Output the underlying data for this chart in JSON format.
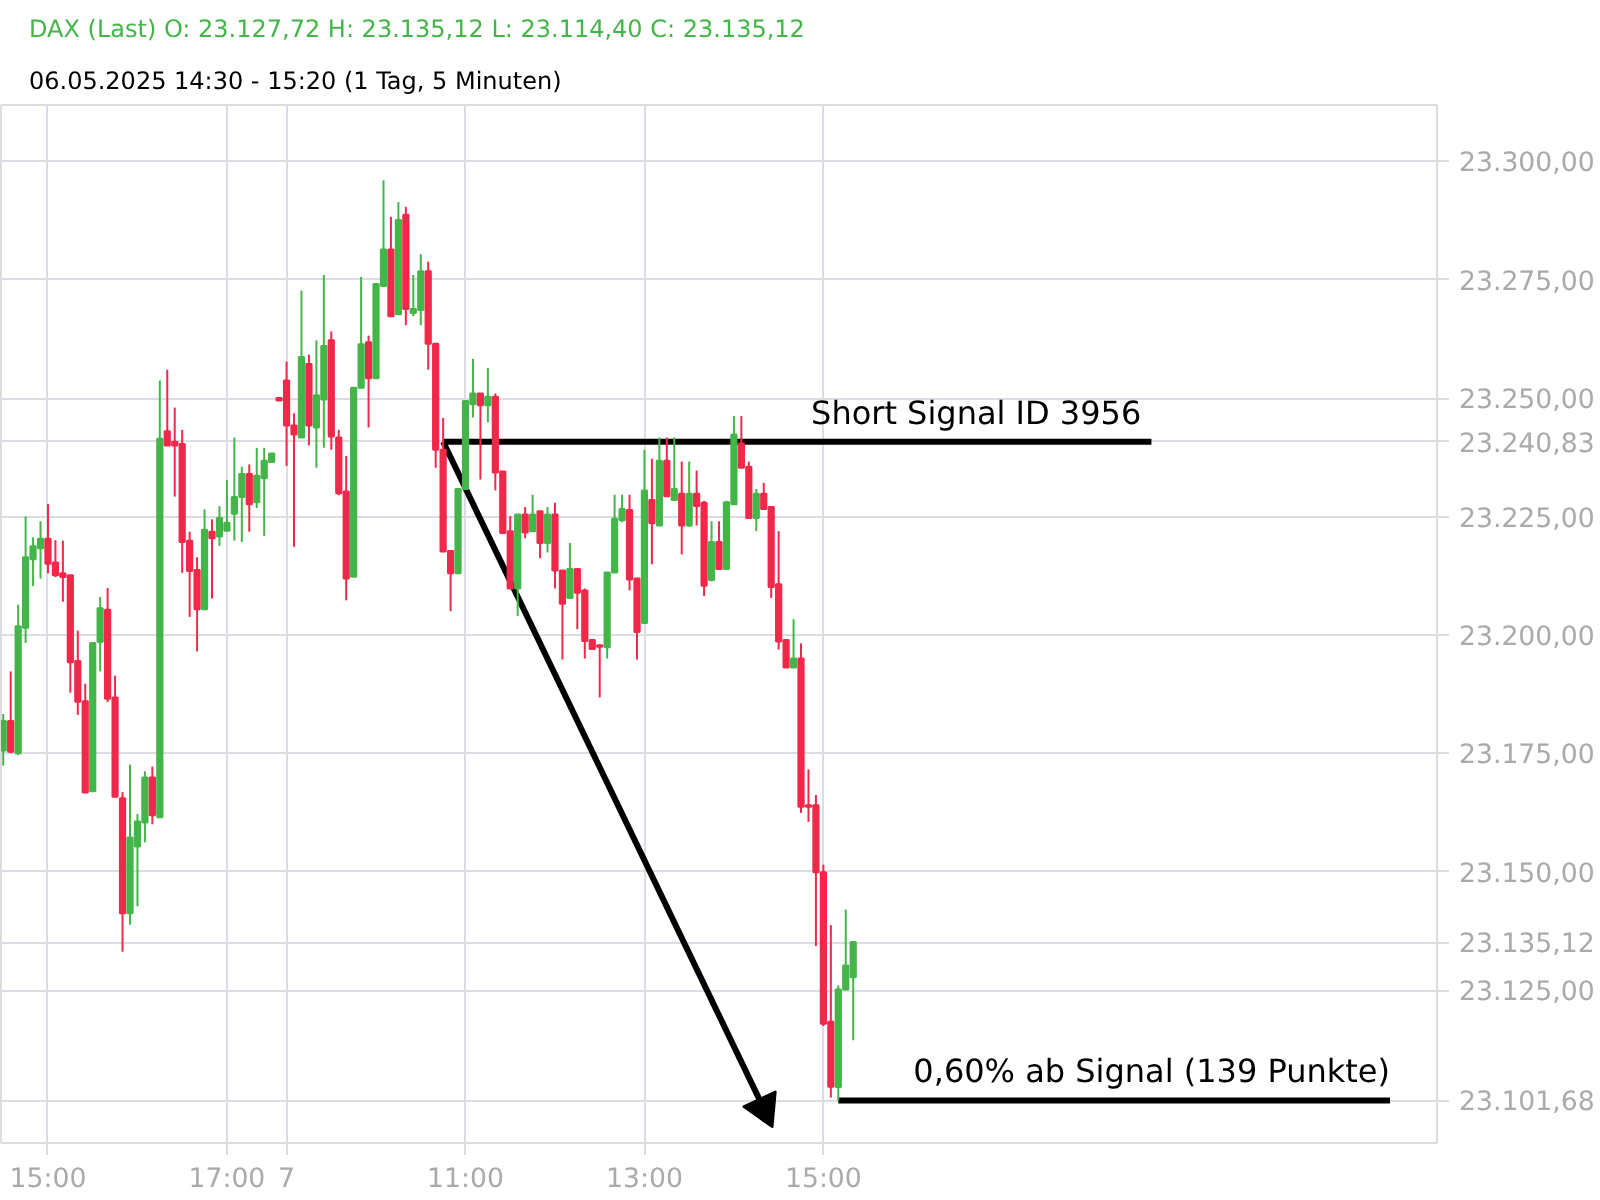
{
  "chart_data": {
    "type": "candlestick",
    "title": "DAX (Last)  O: 23.127,72  H: 23.135,12  L: 23.114,40  C: 23.135,12",
    "subtitle": "06.05.2025 14:30 - 15:20  (1 Tag, 5 Minuten)",
    "categories": [
      null,
      null,
      null,
      null,
      null,
      null,
      "15:00",
      null,
      null,
      null,
      null,
      null,
      null,
      null,
      null,
      null,
      null,
      null,
      null,
      null,
      null,
      null,
      null,
      null,
      null,
      null,
      null,
      null,
      null,
      null,
      "17:00",
      null,
      null,
      null,
      null,
      null,
      null,
      null,
      "7",
      null,
      null,
      null,
      null,
      null,
      null,
      null,
      null,
      null,
      null,
      null,
      null,
      null,
      null,
      null,
      null,
      null,
      null,
      null,
      null,
      null,
      null,
      null,
      "11:00",
      null,
      null,
      null,
      null,
      null,
      null,
      null,
      null,
      null,
      null,
      null,
      null,
      null,
      null,
      null,
      null,
      null,
      null,
      null,
      null,
      null,
      null,
      null,
      "13:00",
      null,
      null,
      null,
      null,
      null,
      null,
      null,
      null,
      null,
      null,
      null,
      null,
      null,
      null,
      null,
      null,
      null,
      null,
      null,
      null,
      null,
      null,
      null,
      "15:00",
      null,
      null,
      null,
      null,
      null,
      null,
      null,
      null,
      null,
      null,
      null,
      null,
      null,
      null,
      null,
      null,
      null,
      null,
      null,
      null,
      null,
      null,
      null,
      null,
      null,
      null,
      null,
      null,
      null,
      null,
      null,
      null,
      null,
      null,
      null,
      null,
      null,
      null,
      null,
      null,
      null,
      null,
      null,
      null,
      null,
      null,
      null,
      null,
      null,
      null,
      null,
      null,
      null,
      null,
      null,
      null,
      null,
      null,
      null,
      null,
      null,
      null,
      null,
      null,
      null,
      null,
      null,
      null,
      null,
      null,
      null,
      null,
      null,
      null,
      null,
      null,
      null,
      null,
      null,
      null,
      null,
      null
    ],
    "ohlc": [
      [
        23175.6,
        23183.3,
        23172.4,
        23181.8
      ],
      [
        23181.8,
        23192.3,
        23175.0,
        23175.3
      ],
      [
        23175.0,
        23206.4,
        23174.6,
        23201.8
      ],
      [
        23201.5,
        23225.0,
        23198.3,
        23216.4
      ],
      [
        23216.0,
        23220.6,
        23210.3,
        23218.7
      ],
      [
        23218.3,
        23224.0,
        23211.9,
        23220.3
      ],
      [
        23220.3,
        23227.6,
        23213.0,
        23215.0
      ],
      [
        23215.3,
        23220.0,
        23212.2,
        23212.6
      ],
      [
        23213.0,
        23219.9,
        23207.0,
        23212.2
      ],
      [
        23212.6,
        23212.6,
        23187.8,
        23194.2
      ],
      [
        23194.5,
        23200.9,
        23183.1,
        23185.9
      ],
      [
        23186.0,
        23189.7,
        23166.7,
        23166.7
      ],
      [
        23167.0,
        23198.3,
        23167.0,
        23198.3
      ],
      [
        23198.5,
        23208.0,
        23192.3,
        23205.6
      ],
      [
        23205.3,
        23209.9,
        23185.8,
        23186.5
      ],
      [
        23186.8,
        23191.4,
        23165.8,
        23165.8
      ],
      [
        23165.5,
        23166.8,
        23133.1,
        23141.2
      ],
      [
        23141.2,
        23172.6,
        23138.8,
        23157.2
      ],
      [
        23155.3,
        23162.2,
        23142.7,
        23160.6
      ],
      [
        23160.4,
        23171.2,
        23156.2,
        23169.9
      ],
      [
        23169.9,
        23172.2,
        23160.0,
        23161.9
      ],
      [
        23161.5,
        23253.7,
        23161.5,
        23241.4
      ],
      [
        23243.0,
        23256.0,
        23240.0,
        23240.0
      ],
      [
        23240.8,
        23248.0,
        23229.2,
        23240.0
      ],
      [
        23240.3,
        23243.3,
        23213.1,
        23219.6
      ],
      [
        23219.9,
        23221.8,
        23203.8,
        23213.5
      ],
      [
        23213.7,
        23216.4,
        23196.5,
        23205.4
      ],
      [
        23205.4,
        23226.5,
        23205.4,
        23222.2
      ],
      [
        23221.8,
        23224.4,
        23207.7,
        23220.4
      ],
      [
        23220.8,
        23227.2,
        23218.8,
        23224.7
      ],
      [
        23222.0,
        23232.7,
        23222.0,
        23223.7
      ],
      [
        23225.6,
        23241.7,
        23219.9,
        23229.1
      ],
      [
        23229.1,
        23235.5,
        23219.6,
        23234.0
      ],
      [
        23234.0,
        23236.0,
        23221.8,
        23227.6
      ],
      [
        23228.0,
        23239.5,
        23226.8,
        23233.6
      ],
      [
        23233.1,
        23239.5,
        23220.9,
        23236.8
      ],
      [
        23236.5,
        23238.3,
        23236.5,
        23238.3
      ],
      [
        23250.0,
        23250.0,
        23249.5,
        23249.5
      ],
      [
        23253.7,
        23257.7,
        23235.7,
        23244.2
      ],
      [
        23244.2,
        23246.8,
        23218.6,
        23242.3
      ],
      [
        23241.7,
        23272.7,
        23241.7,
        23258.7
      ],
      [
        23257.2,
        23259.2,
        23240.0,
        23244.2
      ],
      [
        23243.8,
        23262.2,
        23235.3,
        23250.6
      ],
      [
        23249.7,
        23276.0,
        23239.5,
        23261.0
      ],
      [
        23262.2,
        23264.1,
        23239.1,
        23241.9
      ],
      [
        23241.7,
        23243.3,
        23229.5,
        23229.9
      ],
      [
        23230.3,
        23237.8,
        23207.3,
        23211.9
      ],
      [
        23212.3,
        23252.2,
        23212.3,
        23252.2
      ],
      [
        23252.2,
        23275.6,
        23252.2,
        23261.4
      ],
      [
        23261.8,
        23263.2,
        23243.8,
        23254.2
      ],
      [
        23254.2,
        23274.1,
        23254.2,
        23274.1
      ],
      [
        23273.7,
        23296.0,
        23273.7,
        23281.4
      ],
      [
        23281.4,
        23288.3,
        23267.3,
        23267.3
      ],
      [
        23267.7,
        23291.4,
        23267.7,
        23287.6
      ],
      [
        23288.7,
        23290.4,
        23265.4,
        23268.8
      ],
      [
        23268.0,
        23276.0,
        23267.3,
        23268.8
      ],
      [
        23268.6,
        23280.4,
        23265.4,
        23276.8
      ],
      [
        23276.8,
        23278.8,
        23256.0,
        23261.5
      ],
      [
        23261.5,
        23261.5,
        23235.3,
        23239.1
      ],
      [
        23239.1,
        23245.8,
        23217.6,
        23217.6
      ],
      [
        23217.7,
        23217.7,
        23205.0,
        23213.0
      ],
      [
        23213.0,
        23230.8,
        23213.0,
        23230.8
      ],
      [
        23230.8,
        23249.4,
        23230.8,
        23249.4
      ],
      [
        23248.7,
        23258.3,
        23245.9,
        23251.0
      ],
      [
        23251.0,
        23251.0,
        23232.8,
        23248.5
      ],
      [
        23248.5,
        23256.4,
        23244.9,
        23250.3
      ],
      [
        23250.3,
        23251.0,
        23230.5,
        23234.3
      ],
      [
        23234.5,
        23234.5,
        23221.3,
        23221.5
      ],
      [
        23221.9,
        23225.1,
        23209.8,
        23209.8
      ],
      [
        23209.8,
        23225.4,
        23204.0,
        23225.4
      ],
      [
        23225.4,
        23227.0,
        23220.4,
        23221.6
      ],
      [
        23221.9,
        23229.6,
        23221.9,
        23225.4
      ],
      [
        23226.1,
        23226.1,
        23216.2,
        23219.4
      ],
      [
        23219.4,
        23227.0,
        23217.4,
        23225.4
      ],
      [
        23225.4,
        23227.9,
        23209.8,
        23213.6
      ],
      [
        23213.6,
        23213.6,
        23194.8,
        23206.6
      ],
      [
        23207.8,
        23219.4,
        23207.8,
        23213.9
      ],
      [
        23213.9,
        23213.9,
        23201.2,
        23208.9
      ],
      [
        23209.4,
        23209.8,
        23195.0,
        23198.7
      ],
      [
        23198.9,
        23198.9,
        23197.0,
        23197.0
      ],
      [
        23197.8,
        23197.8,
        23186.8,
        23197.5
      ],
      [
        23197.4,
        23213.2,
        23195.0,
        23213.2
      ],
      [
        23213.2,
        23229.6,
        23213.2,
        23224.5
      ],
      [
        23224.2,
        23229.6,
        23223.8,
        23226.6
      ],
      [
        23226.4,
        23229.6,
        23209.4,
        23211.7
      ],
      [
        23211.9,
        23211.9,
        23194.8,
        23200.6
      ],
      [
        23202.5,
        23239.1,
        23202.5,
        23230.5
      ],
      [
        23228.5,
        23237.2,
        23214.9,
        23223.6
      ],
      [
        23223.1,
        23241.7,
        23223.1,
        23236.8
      ],
      [
        23236.8,
        23241.7,
        23229.3,
        23229.3
      ],
      [
        23228.5,
        23241.7,
        23228.3,
        23230.8
      ],
      [
        23229.8,
        23236.6,
        23217.0,
        23223.1
      ],
      [
        23223.1,
        23236.6,
        23222.8,
        23229.8
      ],
      [
        23229.8,
        23234.7,
        23223.1,
        23227.2
      ],
      [
        23227.9,
        23228.3,
        23208.2,
        23210.4
      ],
      [
        23211.6,
        23224.0,
        23211.3,
        23219.6
      ],
      [
        23219.6,
        23224.0,
        23213.9,
        23213.9
      ],
      [
        23213.9,
        23228.3,
        23213.9,
        23228.0
      ],
      [
        23227.6,
        23246.2,
        23227.6,
        23242.3
      ],
      [
        23240.4,
        23246.2,
        23235.3,
        23235.3
      ],
      [
        23235.5,
        23236.6,
        23224.7,
        23224.7
      ],
      [
        23224.7,
        23230.8,
        23221.9,
        23229.8
      ],
      [
        23229.8,
        23232.1,
        23226.6,
        23226.6
      ],
      [
        23227.0,
        23227.0,
        23207.8,
        23210.1
      ],
      [
        23210.7,
        23221.9,
        23196.9,
        23198.6
      ],
      [
        23198.9,
        23198.9,
        23193.1,
        23193.1
      ],
      [
        23193.1,
        23203.3,
        23193.1,
        23195.0
      ],
      [
        23195.0,
        23198.2,
        23162.4,
        23163.7
      ],
      [
        23164.0,
        23171.6,
        23160.5,
        23163.7
      ],
      [
        23164.0,
        23166.2,
        23134.3,
        23149.9
      ],
      [
        23149.9,
        23151.5,
        23117.4,
        23117.9
      ],
      [
        23118.3,
        23138.7,
        23102.3,
        23104.6
      ],
      [
        23104.5,
        23126.0,
        23101.7,
        23125.1
      ],
      [
        23125.1,
        23142.0,
        23125.1,
        23130.2
      ],
      [
        23127.72,
        23135.12,
        23114.4,
        23135.12
      ],
      null,
      null,
      null,
      null,
      null,
      null,
      null,
      null,
      null,
      null,
      null,
      null,
      null,
      null,
      null,
      null,
      null,
      null,
      null,
      null,
      null,
      null,
      null,
      null,
      null,
      null,
      null,
      null,
      null,
      null,
      null,
      null,
      null,
      null,
      null,
      null,
      null,
      null,
      null,
      null,
      null,
      null,
      null,
      null,
      null,
      null,
      null,
      null,
      null,
      null,
      null,
      null,
      null,
      null,
      null,
      null,
      null,
      null,
      null,
      null,
      null,
      null,
      null,
      null,
      null,
      null,
      null,
      null,
      null,
      null,
      null,
      null,
      null,
      null,
      null,
      null,
      null,
      null
    ],
    "series": [
      {
        "type": "line",
        "name": "Short Signal  ID 3956",
        "color": "#000000",
        "values": [
          null,
          null,
          null,
          null,
          null,
          null,
          null,
          null,
          null,
          null,
          null,
          null,
          null,
          null,
          null,
          null,
          null,
          null,
          null,
          null,
          null,
          null,
          null,
          null,
          null,
          null,
          null,
          null,
          null,
          null,
          null,
          null,
          null,
          null,
          null,
          null,
          null,
          null,
          null,
          null,
          null,
          null,
          null,
          null,
          null,
          null,
          null,
          null,
          null,
          null,
          null,
          null,
          null,
          null,
          null,
          null,
          null,
          null,
          null,
          23240.8,
          23240.8,
          23240.8,
          23240.8,
          23240.8,
          23240.8,
          23240.8,
          23240.8,
          23240.8,
          23240.8,
          23240.8,
          23240.8,
          23240.8,
          23240.8,
          23240.8,
          23240.8,
          23240.8,
          23240.8,
          23240.8,
          23240.8,
          23240.8,
          23240.8,
          23240.8,
          23240.8,
          23240.8,
          23240.8,
          23240.8,
          23240.8,
          23240.8,
          23240.8,
          23240.8,
          23240.8,
          23240.8,
          23240.8,
          23240.8,
          23240.8,
          23240.8,
          23240.8,
          23240.8,
          23240.8,
          23240.8,
          23240.8,
          23240.8,
          23240.8,
          23240.8,
          23240.8,
          23240.8,
          23240.8,
          23240.8,
          23240.8,
          23240.8,
          23240.8,
          23240.8,
          23240.8,
          23240.8,
          23240.8,
          23240.8,
          23240.8,
          23240.8,
          23240.8,
          23240.8,
          23240.8,
          23240.8,
          23240.8,
          23240.8,
          23240.8,
          23240.8,
          23240.8,
          23240.8,
          23240.8,
          23240.8,
          23240.8,
          23240.8,
          23240.8,
          23240.8,
          23240.8,
          23240.8,
          23240.8,
          23240.8,
          23240.8,
          23240.8,
          23240.8,
          23240.8,
          23240.8,
          23240.8,
          23240.8,
          23240.8,
          23240.8,
          23240.8,
          23240.8,
          23240.8,
          23240.8,
          23240.8,
          23240.8,
          23240.8,
          23240.8,
          null,
          null,
          null,
          null,
          null,
          null,
          null,
          null,
          null,
          null,
          null,
          null,
          null,
          null,
          null,
          null,
          null,
          null,
          null,
          null,
          null,
          null,
          null,
          null,
          null,
          null,
          null,
          null,
          null,
          null,
          null,
          null,
          null,
          null,
          null,
          null,
          null,
          null
        ]
      },
      {
        "type": "line",
        "marker": "triangle",
        "color": "#000000",
        "values": [
          null,
          null,
          null,
          null,
          null,
          null,
          null,
          null,
          null,
          null,
          null,
          null,
          null,
          null,
          null,
          null,
          null,
          null,
          null,
          null,
          null,
          null,
          null,
          null,
          null,
          null,
          null,
          null,
          null,
          null,
          null,
          null,
          null,
          null,
          null,
          null,
          null,
          null,
          null,
          null,
          null,
          null,
          null,
          null,
          null,
          null,
          null,
          null,
          null,
          null,
          null,
          null,
          null,
          null,
          null,
          null,
          null,
          null,
          null,
          23240.8,
          null,
          null,
          null,
          null,
          null,
          null,
          null,
          null,
          null,
          null,
          null,
          null,
          null,
          null,
          null,
          null,
          null,
          null,
          null,
          null,
          null,
          null,
          null,
          null,
          null,
          null,
          null,
          null,
          null,
          null,
          null,
          null,
          null,
          null,
          null,
          null,
          null,
          null,
          null,
          null,
          null,
          null,
          23100,
          null,
          null,
          null,
          null,
          null,
          null,
          null,
          null,
          null,
          null,
          null,
          null,
          null,
          null,
          null,
          null,
          null,
          null,
          null,
          null,
          null,
          null,
          null,
          null,
          null,
          null,
          null,
          null,
          null,
          null,
          null,
          null,
          null,
          null,
          null,
          null,
          null,
          null,
          null,
          null,
          null,
          null,
          null,
          null,
          null,
          null,
          null,
          null,
          null,
          null,
          null,
          null,
          null,
          null,
          null,
          null,
          null,
          null,
          null,
          null,
          null,
          null,
          null,
          null,
          null,
          null,
          null,
          null,
          null,
          null,
          null,
          null,
          null,
          null,
          null,
          null,
          null,
          null,
          null,
          null,
          null,
          null,
          null,
          null,
          null,
          null,
          null,
          null,
          null,
          null
        ]
      },
      {
        "type": "line",
        "name": "0,60% ab Signal (139 Punkte)",
        "color": "#000000",
        "values": [
          null,
          null,
          null,
          null,
          null,
          null,
          null,
          null,
          null,
          null,
          null,
          null,
          null,
          null,
          null,
          null,
          null,
          null,
          null,
          null,
          null,
          null,
          null,
          null,
          null,
          null,
          null,
          null,
          null,
          null,
          null,
          null,
          null,
          null,
          null,
          null,
          null,
          null,
          null,
          null,
          null,
          null,
          null,
          null,
          null,
          null,
          null,
          null,
          null,
          null,
          null,
          null,
          null,
          null,
          null,
          null,
          null,
          null,
          null,
          null,
          null,
          null,
          null,
          null,
          null,
          null,
          null,
          null,
          null,
          null,
          null,
          null,
          null,
          null,
          null,
          null,
          null,
          null,
          null,
          null,
          null,
          null,
          null,
          null,
          null,
          null,
          null,
          null,
          null,
          null,
          null,
          null,
          null,
          null,
          null,
          null,
          null,
          null,
          null,
          null,
          null,
          null,
          null,
          null,
          null,
          null,
          null,
          null,
          null,
          null,
          null,
          null,
          23101.7,
          23101.7,
          23101.7,
          23101.7,
          23101.7,
          23101.7,
          23101.7,
          23101.7,
          23101.7,
          23101.7,
          23101.7,
          23101.7,
          23101.7,
          23101.7,
          23101.7,
          23101.7,
          23101.7,
          23101.7,
          23101.7,
          23101.7,
          23101.7,
          23101.7,
          23101.7,
          23101.7,
          23101.7,
          23101.7,
          23101.7,
          23101.7,
          23101.7,
          23101.7,
          23101.7,
          23101.7,
          23101.7,
          23101.7,
          23101.7,
          23101.7,
          23101.7,
          23101.7,
          23101.7,
          23101.7,
          23101.7,
          23101.7,
          23101.7,
          23101.7,
          23101.7,
          23101.7,
          23101.7,
          23101.7,
          23101.7,
          23101.7,
          23101.7,
          23101.7,
          23101.7,
          23101.7,
          23101.7,
          23101.7,
          23101.7,
          23101.7,
          23101.7,
          23101.7,
          23101.7,
          23101.7,
          23101.7,
          23101.7,
          23101.7,
          23101.7,
          23101.7,
          23101.7,
          23101.7,
          23101.7,
          23101.7,
          23101.7,
          23101.7,
          23101.7,
          23101.7,
          null,
          null,
          null,
          null,
          null,
          null
        ]
      }
    ],
    "ylim": [
      23092.7,
      23311.9
    ],
    "yticks": [
      {
        "value": 23101.68,
        "label": "23.101,68"
      },
      {
        "value": 23135.12,
        "label": "23.135,12"
      },
      {
        "value": 23240.83,
        "label": "23.240,83"
      },
      {
        "value": 23125,
        "label": "23.125,00"
      },
      {
        "value": 23150,
        "label": "23.150,00"
      },
      {
        "value": 23175,
        "label": "23.175,00"
      },
      {
        "value": 23200,
        "label": "23.200,00"
      },
      {
        "value": 23225,
        "label": "23.225,00"
      },
      {
        "value": 23250,
        "label": "23.250,00"
      },
      {
        "value": 23275,
        "label": "23.275,00"
      },
      {
        "value": 23300,
        "label": "23.300,00"
      }
    ],
    "grid": true
  }
}
